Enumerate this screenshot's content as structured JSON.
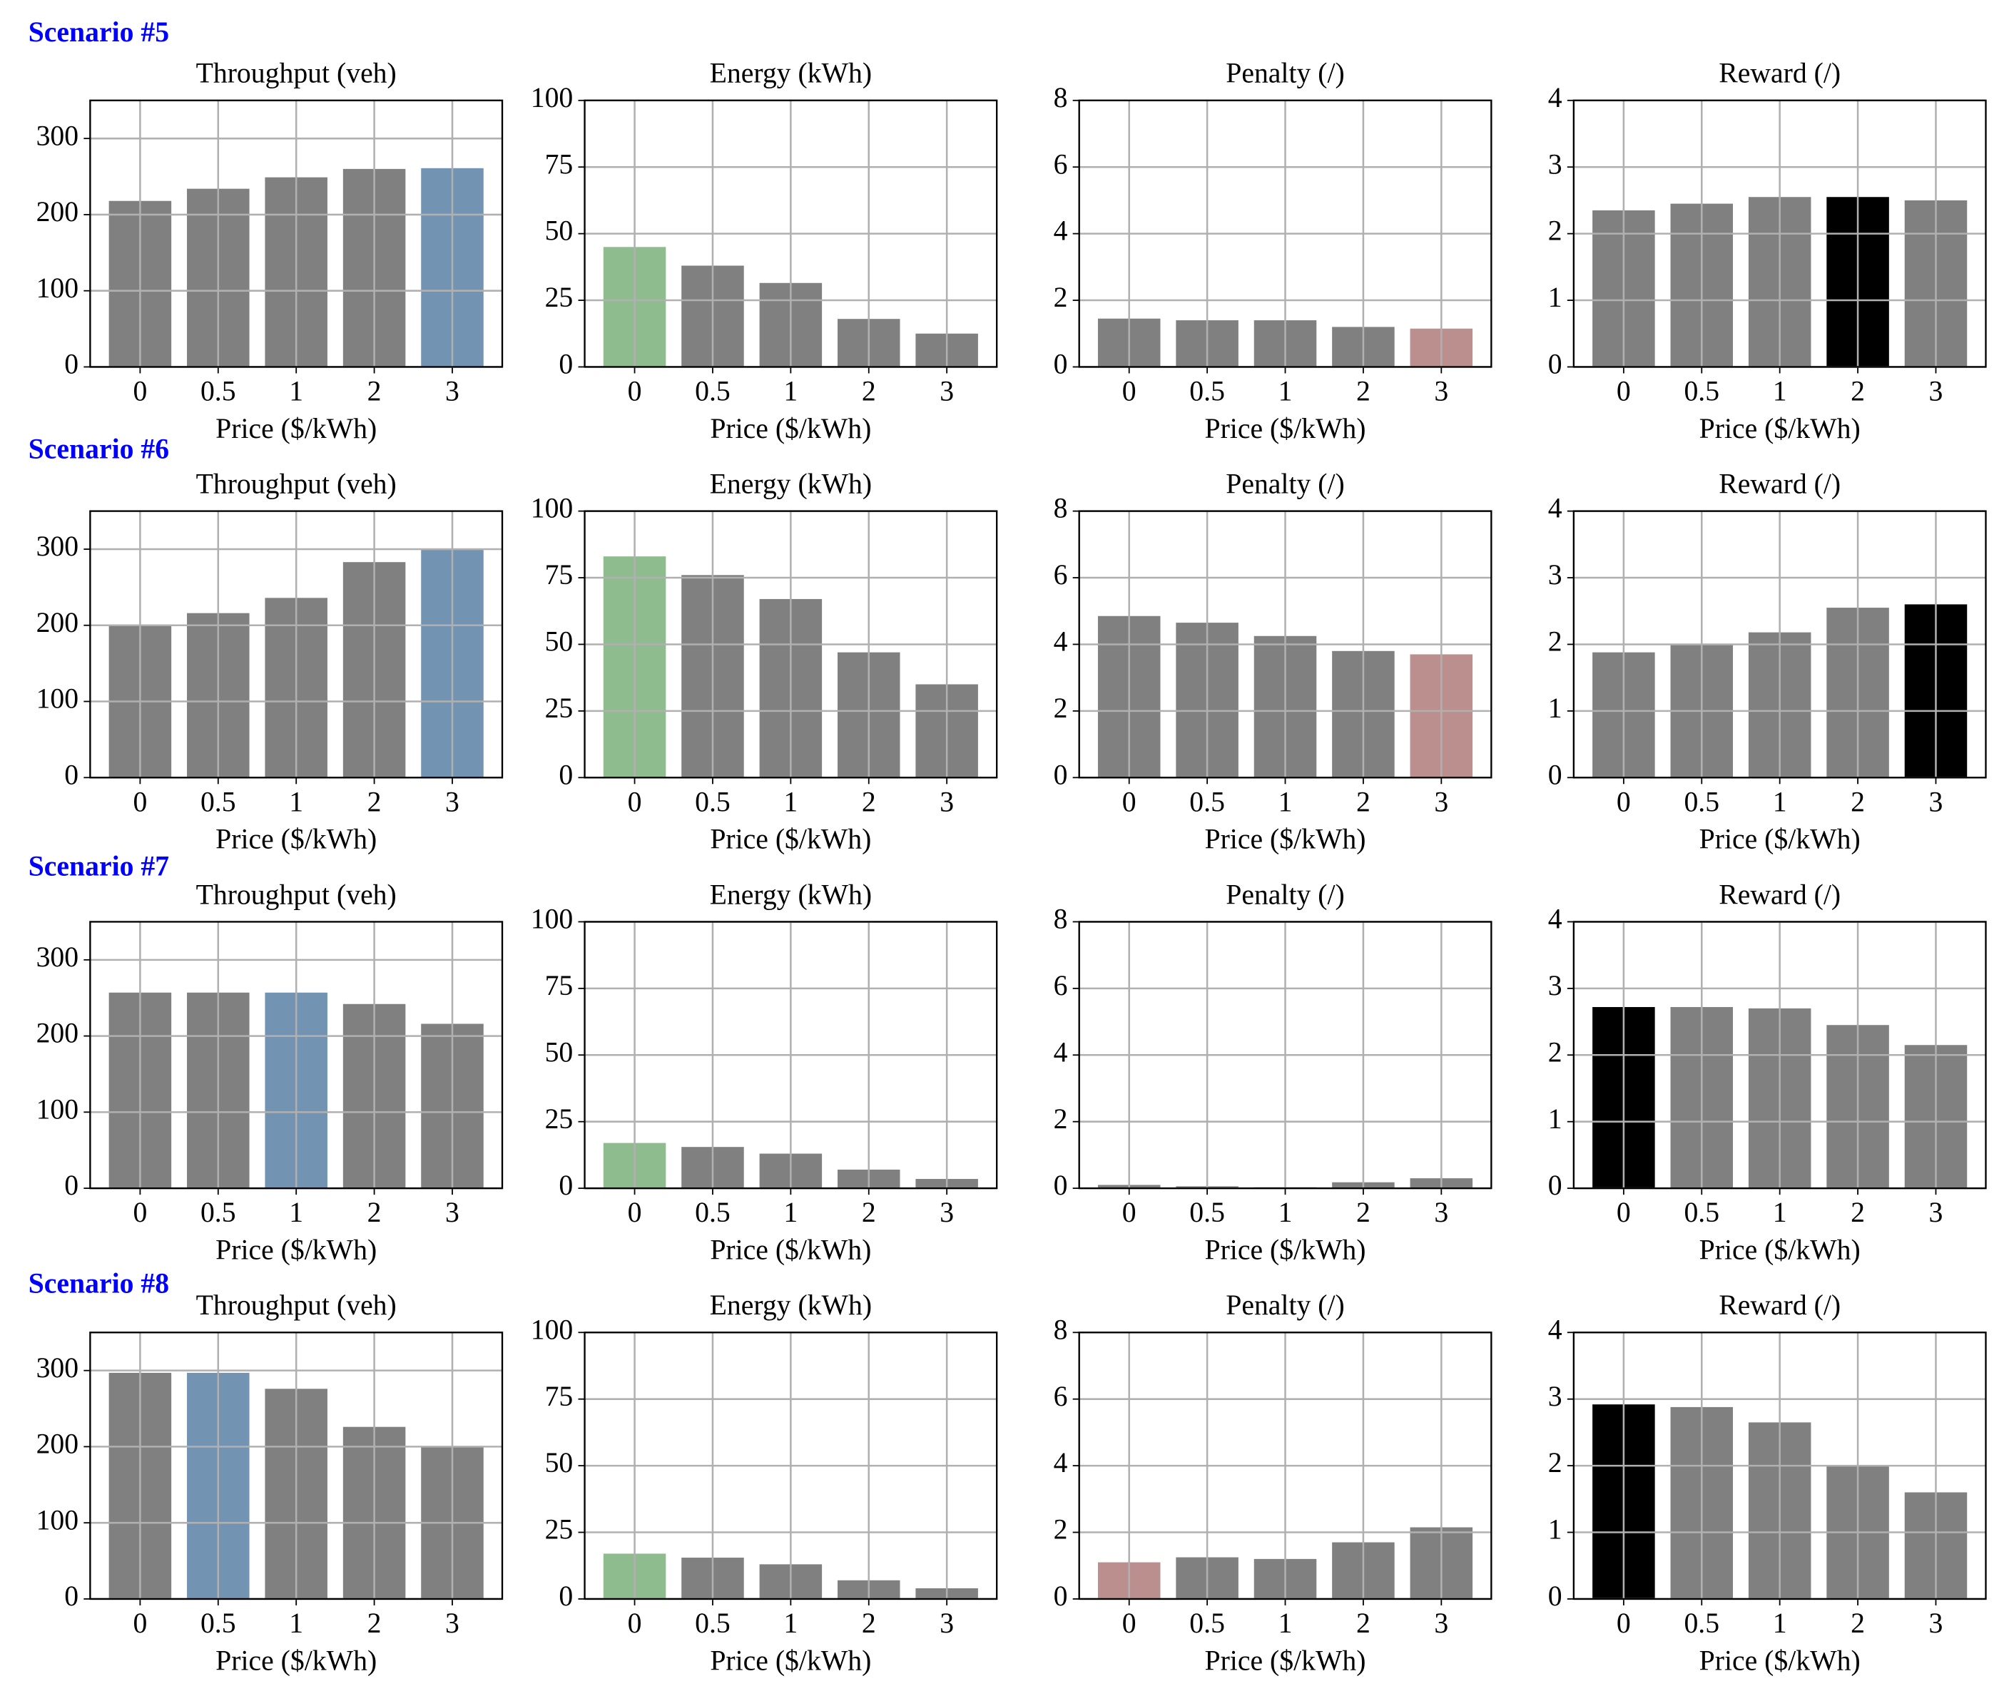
{
  "scenarios": [
    "Scenario #5",
    "Scenario #6",
    "Scenario #7",
    "Scenario #8"
  ],
  "chart_data": [
    {
      "type": "bar",
      "title": "Throughput (veh)",
      "x_label": "Price ($/kWh)",
      "categories": [
        "0",
        "0.5",
        "1",
        "2",
        "3"
      ],
      "values": [
        218,
        234,
        249,
        260,
        261
      ],
      "colors": [
        "#808080",
        "#808080",
        "#808080",
        "#808080",
        "#7393b3"
      ],
      "ylim": [
        0,
        350
      ],
      "yticks": [
        0,
        100,
        200,
        300
      ],
      "grid": true
    },
    {
      "type": "bar",
      "title": "Energy (kWh)",
      "x_label": "Price ($/kWh)",
      "categories": [
        "0",
        "0.5",
        "1",
        "2",
        "3"
      ],
      "values": [
        45,
        38,
        31.5,
        18,
        12.5
      ],
      "colors": [
        "#8fbc8f",
        "#808080",
        "#808080",
        "#808080",
        "#808080"
      ],
      "ylim": [
        0,
        100
      ],
      "yticks": [
        0,
        25,
        50,
        75,
        100
      ],
      "grid": true
    },
    {
      "type": "bar",
      "title": "Penalty (/)",
      "x_label": "Price ($/kWh)",
      "categories": [
        "0",
        "0.5",
        "1",
        "2",
        "3"
      ],
      "values": [
        1.45,
        1.4,
        1.4,
        1.2,
        1.15
      ],
      "colors": [
        "#808080",
        "#808080",
        "#808080",
        "#808080",
        "#bc8f8f"
      ],
      "ylim": [
        0,
        8
      ],
      "yticks": [
        0,
        2,
        4,
        6,
        8
      ],
      "grid": true
    },
    {
      "type": "bar",
      "title": "Reward (/)",
      "x_label": "Price ($/kWh)",
      "categories": [
        "0",
        "0.5",
        "1",
        "2",
        "3"
      ],
      "values": [
        2.35,
        2.45,
        2.55,
        2.55,
        2.5
      ],
      "colors": [
        "#808080",
        "#808080",
        "#808080",
        "#000000",
        "#808080"
      ],
      "ylim": [
        0,
        4
      ],
      "yticks": [
        0,
        1,
        2,
        3,
        4
      ],
      "grid": true
    },
    {
      "type": "bar",
      "title": "Throughput (veh)",
      "x_label": "Price ($/kWh)",
      "categories": [
        "0",
        "0.5",
        "1",
        "2",
        "3"
      ],
      "values": [
        200,
        216,
        236,
        283,
        299
      ],
      "colors": [
        "#808080",
        "#808080",
        "#808080",
        "#808080",
        "#7393b3"
      ],
      "ylim": [
        0,
        350
      ],
      "yticks": [
        0,
        100,
        200,
        300
      ],
      "grid": true
    },
    {
      "type": "bar",
      "title": "Energy (kWh)",
      "x_label": "Price ($/kWh)",
      "categories": [
        "0",
        "0.5",
        "1",
        "2",
        "3"
      ],
      "values": [
        83,
        76,
        67,
        47,
        35
      ],
      "colors": [
        "#8fbc8f",
        "#808080",
        "#808080",
        "#808080",
        "#808080"
      ],
      "ylim": [
        0,
        100
      ],
      "yticks": [
        0,
        25,
        50,
        75,
        100
      ],
      "grid": true
    },
    {
      "type": "bar",
      "title": "Penalty (/)",
      "x_label": "Price ($/kWh)",
      "categories": [
        "0",
        "0.5",
        "1",
        "2",
        "3"
      ],
      "values": [
        4.85,
        4.65,
        4.25,
        3.8,
        3.7
      ],
      "colors": [
        "#808080",
        "#808080",
        "#808080",
        "#808080",
        "#bc8f8f"
      ],
      "ylim": [
        0,
        8
      ],
      "yticks": [
        0,
        2,
        4,
        6,
        8
      ],
      "grid": true
    },
    {
      "type": "bar",
      "title": "Reward (/)",
      "x_label": "Price ($/kWh)",
      "categories": [
        "0",
        "0.5",
        "1",
        "2",
        "3"
      ],
      "values": [
        1.88,
        2.0,
        2.18,
        2.55,
        2.6
      ],
      "colors": [
        "#808080",
        "#808080",
        "#808080",
        "#808080",
        "#000000"
      ],
      "ylim": [
        0,
        4
      ],
      "yticks": [
        0,
        1,
        2,
        3,
        4
      ],
      "grid": true
    },
    {
      "type": "bar",
      "title": "Throughput (veh)",
      "x_label": "Price ($/kWh)",
      "categories": [
        "0",
        "0.5",
        "1",
        "2",
        "3"
      ],
      "values": [
        257,
        257,
        257,
        242,
        216
      ],
      "colors": [
        "#808080",
        "#808080",
        "#7393b3",
        "#808080",
        "#808080"
      ],
      "ylim": [
        0,
        350
      ],
      "yticks": [
        0,
        100,
        200,
        300
      ],
      "grid": true
    },
    {
      "type": "bar",
      "title": "Energy (kWh)",
      "x_label": "Price ($/kWh)",
      "categories": [
        "0",
        "0.5",
        "1",
        "2",
        "3"
      ],
      "values": [
        17,
        15.5,
        13,
        7,
        3.5
      ],
      "colors": [
        "#8fbc8f",
        "#808080",
        "#808080",
        "#808080",
        "#808080"
      ],
      "ylim": [
        0,
        100
      ],
      "yticks": [
        0,
        25,
        50,
        75,
        100
      ],
      "grid": true
    },
    {
      "type": "bar",
      "title": "Penalty (/)",
      "x_label": "Price ($/kWh)",
      "categories": [
        "0",
        "0.5",
        "1",
        "2",
        "3"
      ],
      "values": [
        0.1,
        0.06,
        0.03,
        0.18,
        0.3
      ],
      "colors": [
        "#808080",
        "#808080",
        "#808080",
        "#808080",
        "#808080"
      ],
      "ylim": [
        0,
        8
      ],
      "yticks": [
        0,
        2,
        4,
        6,
        8
      ],
      "grid": true
    },
    {
      "type": "bar",
      "title": "Reward (/)",
      "x_label": "Price ($/kWh)",
      "categories": [
        "0",
        "0.5",
        "1",
        "2",
        "3"
      ],
      "values": [
        2.72,
        2.72,
        2.7,
        2.45,
        2.15
      ],
      "colors": [
        "#000000",
        "#808080",
        "#808080",
        "#808080",
        "#808080"
      ],
      "ylim": [
        0,
        4
      ],
      "yticks": [
        0,
        1,
        2,
        3,
        4
      ],
      "grid": true
    },
    {
      "type": "bar",
      "title": "Throughput (veh)",
      "x_label": "Price ($/kWh)",
      "categories": [
        "0",
        "0.5",
        "1",
        "2",
        "3"
      ],
      "values": [
        297,
        297,
        276,
        226,
        199
      ],
      "colors": [
        "#808080",
        "#7393b3",
        "#808080",
        "#808080",
        "#808080"
      ],
      "ylim": [
        0,
        350
      ],
      "yticks": [
        0,
        100,
        200,
        300
      ],
      "grid": true
    },
    {
      "type": "bar",
      "title": "Energy (kWh)",
      "x_label": "Price ($/kWh)",
      "categories": [
        "0",
        "0.5",
        "1",
        "2",
        "3"
      ],
      "values": [
        17,
        15.5,
        13,
        7,
        4
      ],
      "colors": [
        "#8fbc8f",
        "#808080",
        "#808080",
        "#808080",
        "#808080"
      ],
      "ylim": [
        0,
        100
      ],
      "yticks": [
        0,
        25,
        50,
        75,
        100
      ],
      "grid": true
    },
    {
      "type": "bar",
      "title": "Penalty (/)",
      "x_label": "Price ($/kWh)",
      "categories": [
        "0",
        "0.5",
        "1",
        "2",
        "3"
      ],
      "values": [
        1.1,
        1.25,
        1.2,
        1.7,
        2.15
      ],
      "colors": [
        "#bc8f8f",
        "#808080",
        "#808080",
        "#808080",
        "#808080"
      ],
      "ylim": [
        0,
        8
      ],
      "yticks": [
        0,
        2,
        4,
        6,
        8
      ],
      "grid": true
    },
    {
      "type": "bar",
      "title": "Reward (/)",
      "x_label": "Price ($/kWh)",
      "categories": [
        "0",
        "0.5",
        "1",
        "2",
        "3"
      ],
      "values": [
        2.92,
        2.88,
        2.65,
        2.0,
        1.6
      ],
      "colors": [
        "#000000",
        "#808080",
        "#808080",
        "#808080",
        "#808080"
      ],
      "ylim": [
        0,
        4
      ],
      "yticks": [
        0,
        1,
        2,
        3,
        4
      ],
      "grid": true
    }
  ]
}
